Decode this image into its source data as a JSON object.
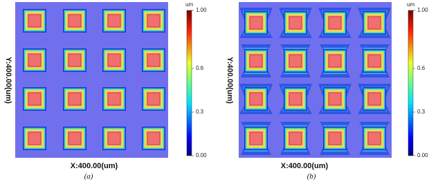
{
  "panels": [
    {
      "axis_x_label": "X:400.00(um)",
      "axis_y_label": "Y:400.00(um)",
      "caption": "(a)",
      "colorbar": {
        "unit": "um",
        "range": [
          0,
          1
        ],
        "ticks": [
          {
            "value": 1,
            "label": "1.00"
          },
          0.6,
          0.3,
          {
            "value": 0,
            "label": "0.00"
          }
        ]
      }
    },
    {
      "axis_x_label": "X:400.00(um)",
      "axis_y_label": "Y:400.00(um)",
      "caption": "(b)",
      "colorbar": {
        "unit": "um",
        "range": [
          0,
          1
        ],
        "ticks": [
          {
            "value": 1,
            "label": "1.00"
          },
          0.6,
          0.3,
          {
            "value": 0,
            "label": "0.00"
          }
        ]
      }
    }
  ]
}
